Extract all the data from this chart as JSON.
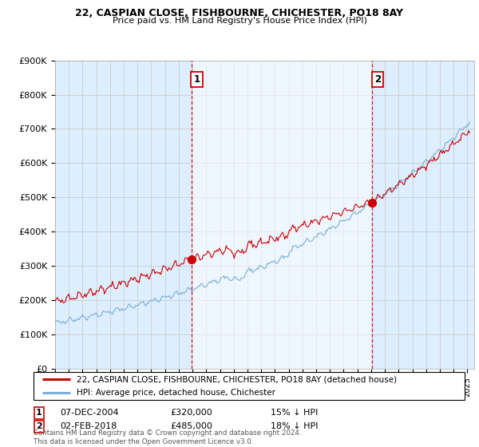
{
  "title": "22, CASPIAN CLOSE, FISHBOURNE, CHICHESTER, PO18 8AY",
  "subtitle": "Price paid vs. HM Land Registry's House Price Index (HPI)",
  "ylim": [
    0,
    900000
  ],
  "yticks": [
    0,
    100000,
    200000,
    300000,
    400000,
    500000,
    600000,
    700000,
    800000,
    900000
  ],
  "ytick_labels": [
    "£0",
    "£100K",
    "£200K",
    "£300K",
    "£400K",
    "£500K",
    "£600K",
    "£700K",
    "£800K",
    "£900K"
  ],
  "xmin": 1995.0,
  "xmax": 2025.5,
  "transaction1_x": 2004.92,
  "transaction1_y": 320000,
  "transaction2_x": 2018.08,
  "transaction2_y": 485000,
  "transaction1_date": "07-DEC-2004",
  "transaction1_price": "£320,000",
  "transaction1_hpi": "15% ↓ HPI",
  "transaction2_date": "02-FEB-2018",
  "transaction2_price": "£485,000",
  "transaction2_hpi": "18% ↓ HPI",
  "line_color_property": "#cc0000",
  "line_color_hpi": "#7aafd4",
  "shade_color": "#ddeeff",
  "vline_color": "#cc0000",
  "grid_color": "#cccccc",
  "legend_label_property": "22, CASPIAN CLOSE, FISHBOURNE, CHICHESTER, PO18 8AY (detached house)",
  "legend_label_hpi": "HPI: Average price, detached house, Chichester",
  "footnote": "Contains HM Land Registry data © Crown copyright and database right 2024.\nThis data is licensed under the Open Government Licence v3.0.",
  "plot_bg_color": "#ddeeff"
}
